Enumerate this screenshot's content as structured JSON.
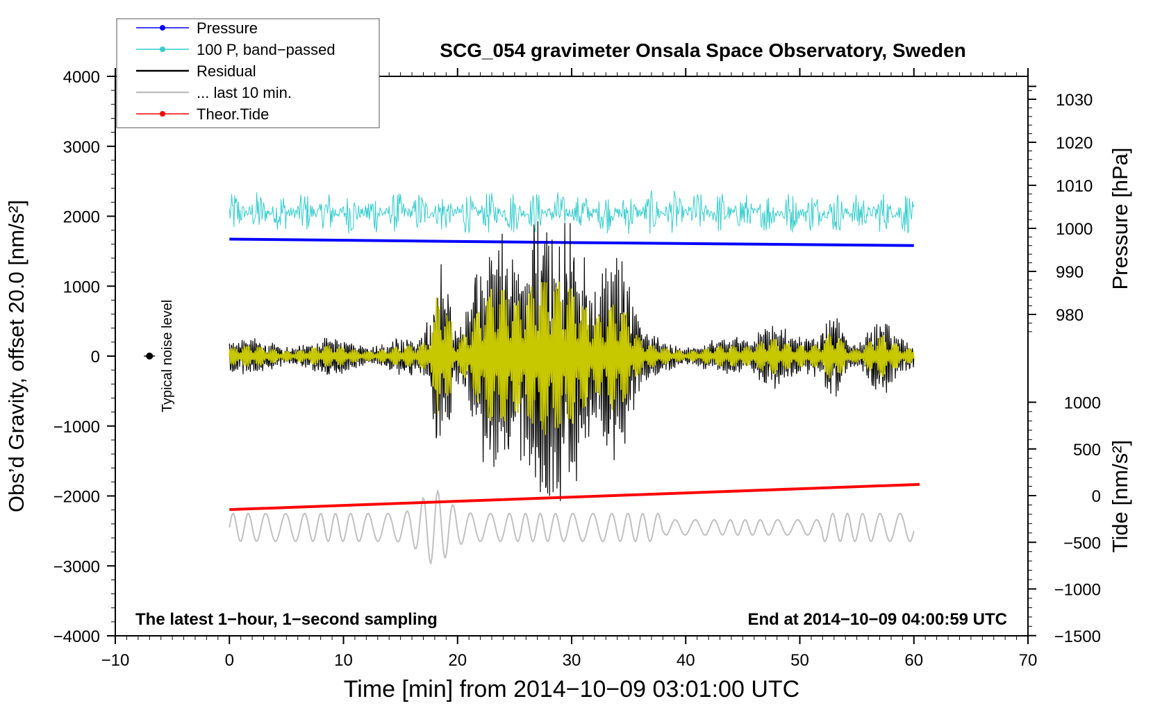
{
  "chart_data": {
    "type": "line",
    "title": "SCG_054 gravimeter Onsala Space Observatory, Sweden",
    "xlabel": "Time [min] from 2014−10−09 03:01:00 UTC",
    "ylabel": "Obs’d Gravity, offset 20.0 [nm/s²]",
    "ylabel_right_top": "Pressure [hPa]",
    "ylabel_right_bottom": "Tide [nm/s²]",
    "xlim": [
      -10,
      70
    ],
    "ylim": [
      -4000,
      4000
    ],
    "pressure_axis": {
      "ticks": [
        980,
        990,
        1000,
        1010,
        1020,
        1030
      ],
      "labels": [
        "980",
        "990",
        "1000",
        "1010",
        "1020",
        "1030"
      ]
    },
    "tide_axis": {
      "ticks": [
        -1500,
        -1000,
        -500,
        0,
        500,
        1000
      ],
      "labels": [
        "−1500",
        "−1000",
        "−500",
        "0",
        "500",
        "1000"
      ]
    },
    "x_ticks": [
      -10,
      0,
      10,
      20,
      30,
      40,
      50,
      60,
      70
    ],
    "x_tick_labels": [
      "−10",
      "0",
      "10",
      "20",
      "30",
      "40",
      "50",
      "60",
      "70"
    ],
    "y_ticks": [
      -4000,
      -3000,
      -2000,
      -1000,
      0,
      1000,
      2000,
      3000,
      4000
    ],
    "y_tick_labels": [
      "−4000",
      "−3000",
      "−2000",
      "−1000",
      "0",
      "1000",
      "2000",
      "3000",
      "4000"
    ],
    "legend": {
      "position": "top-left",
      "entries": [
        {
          "label": "Pressure",
          "color": "#0000ff",
          "marker": true
        },
        {
          "label": "100 P, band−passed",
          "color": "#33cccc",
          "marker": true
        },
        {
          "label": "Residual",
          "color": "#000000",
          "marker": false
        },
        {
          "label": "... last 10 min.",
          "color": "#c0c0c0",
          "marker": false
        },
        {
          "label": "Theor.Tide",
          "color": "#ff0000",
          "marker": true
        }
      ]
    },
    "annotations": {
      "bottom_left": "The latest 1−hour, 1−second sampling",
      "bottom_right": "End at 2014−10−09 04:00:59 UTC",
      "noise_label": "Typical noise level"
    },
    "noise_marker": {
      "x": -7,
      "y": 0
    },
    "series": [
      {
        "name": "Pressure",
        "color": "#0000ff",
        "axis": "pressure",
        "x": [
          0,
          30,
          60
        ],
        "y": [
          997.5,
          996.7,
          996.0
        ]
      },
      {
        "name": "100 P, band−passed",
        "color": "#33cccc",
        "axis": "left",
        "x_range": [
          0,
          60
        ],
        "center": 2050,
        "amplitude": 320
      },
      {
        "name": "Residual",
        "color": "#000000",
        "axis": "left",
        "x_range": [
          0,
          60
        ],
        "center": 0,
        "envelope_peak": 1700
      },
      {
        "name": "Residual (band-passed)",
        "color": "#c8c800",
        "axis": "left",
        "x_range": [
          0,
          60
        ],
        "center": 0,
        "envelope_peak": 1000
      },
      {
        "name": "... last 10 min.",
        "color": "#c0c0c0",
        "axis": "left",
        "x_range": [
          0,
          60
        ],
        "center": -2450,
        "amplitude": 250
      },
      {
        "name": "Theor.Tide",
        "color": "#ff0000",
        "axis": "tide",
        "x": [
          0,
          60.5
        ],
        "y": [
          -150,
          120
        ]
      }
    ]
  }
}
